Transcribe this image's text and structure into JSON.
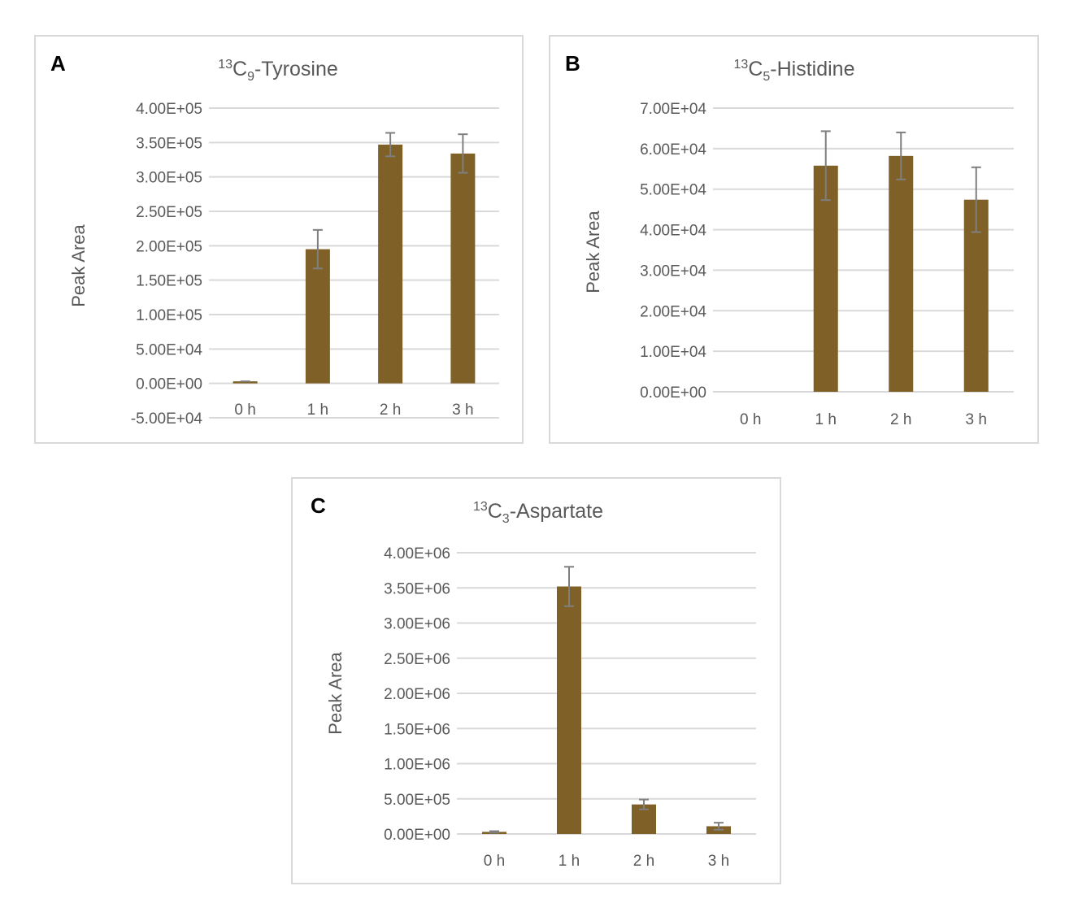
{
  "colors": {
    "bar": "#7f6128",
    "error": "#7f7f7f",
    "grid": "#d9d9d9",
    "text": "#595959",
    "border": "#d9d9d9"
  },
  "chart_data": [
    {
      "panel": "A",
      "type": "bar",
      "title": {
        "sup": "13",
        "main": "C",
        "sub": "9",
        "rest": "-Tyrosine"
      },
      "ylabel": "Peak Area",
      "categories": [
        "0 h",
        "1 h",
        "2 h",
        "3 h"
      ],
      "values": [
        3000,
        195000,
        347000,
        334000
      ],
      "errors": [
        0,
        28000,
        17000,
        28000
      ],
      "ylim": [
        -50000,
        400000
      ],
      "yticks": [
        400000,
        350000,
        300000,
        250000,
        200000,
        150000,
        100000,
        50000,
        0,
        -50000
      ],
      "yticklabels": [
        "4.00E+05",
        "3.50E+05",
        "3.00E+05",
        "2.50E+05",
        "2.00E+05",
        "1.50E+05",
        "1.00E+05",
        "5.00E+04",
        "0.00E+00",
        "-5.00E+04"
      ],
      "grid": true
    },
    {
      "panel": "B",
      "type": "bar",
      "title": {
        "sup": "13",
        "main": "C",
        "sub": "5",
        "rest": "-Histidine"
      },
      "ylabel": "Peak Area",
      "categories": [
        "0 h",
        "1 h",
        "2 h",
        "3 h"
      ],
      "values": [
        0,
        55800,
        58200,
        47400
      ],
      "errors": [
        0,
        8500,
        5800,
        8000
      ],
      "ylim": [
        0,
        70000
      ],
      "yticks": [
        70000,
        60000,
        50000,
        40000,
        30000,
        20000,
        10000,
        0
      ],
      "yticklabels": [
        "7.00E+04",
        "6.00E+04",
        "5.00E+04",
        "4.00E+04",
        "3.00E+04",
        "2.00E+04",
        "1.00E+04",
        "0.00E+00"
      ],
      "grid": true
    },
    {
      "panel": "C",
      "type": "bar",
      "title": {
        "sup": "13",
        "main": "C",
        "sub": "3",
        "rest": "-Aspartate"
      },
      "ylabel": "Peak Area",
      "categories": [
        "0 h",
        "1 h",
        "2 h",
        "3 h"
      ],
      "values": [
        30000,
        3520000,
        420000,
        110000
      ],
      "errors": [
        10000,
        280000,
        70000,
        50000
      ],
      "ylim": [
        0,
        4000000
      ],
      "yticks": [
        4000000,
        3500000,
        3000000,
        2500000,
        2000000,
        1500000,
        1000000,
        500000,
        0
      ],
      "yticklabels": [
        "4.00E+06",
        "3.50E+06",
        "3.00E+06",
        "2.50E+06",
        "2.00E+06",
        "1.50E+06",
        "1.00E+06",
        "5.00E+05",
        "0.00E+00"
      ],
      "grid": true
    }
  ]
}
